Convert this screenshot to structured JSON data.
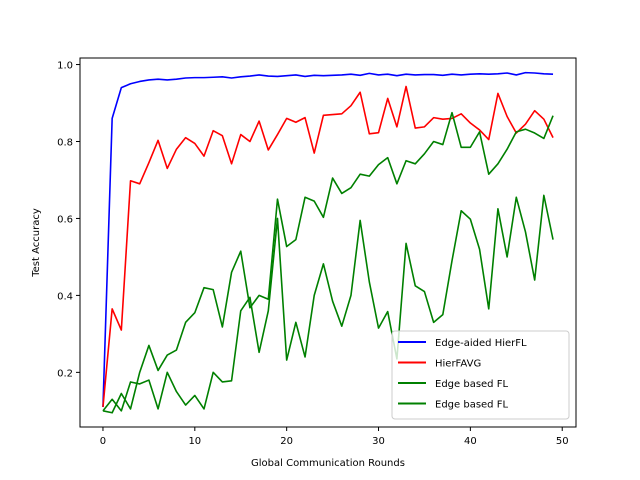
{
  "chart_data": {
    "type": "line",
    "title": "",
    "xlabel": "Global Communication Rounds",
    "ylabel": "Test Accuracy",
    "xlim": [
      -2.5,
      51.5
    ],
    "ylim": [
      0.058,
      1.017
    ],
    "xticks": [
      0,
      10,
      20,
      30,
      40,
      50
    ],
    "yticks": [
      0.2,
      0.4,
      0.6,
      0.8,
      1.0
    ],
    "ytick_labels": [
      "0.2",
      "0.4",
      "0.6",
      "0.8",
      "1.0"
    ],
    "grid": false,
    "legend_position": "lower-right",
    "x": [
      0,
      1,
      2,
      3,
      4,
      5,
      6,
      7,
      8,
      9,
      10,
      11,
      12,
      13,
      14,
      15,
      16,
      17,
      18,
      19,
      20,
      21,
      22,
      23,
      24,
      25,
      26,
      27,
      28,
      29,
      30,
      31,
      32,
      33,
      34,
      35,
      36,
      37,
      38,
      39,
      40,
      41,
      42,
      43,
      44,
      45,
      46,
      47,
      48,
      49
    ],
    "series": [
      {
        "name": "Edge-aided HierFL",
        "color": "#0000ff",
        "values": [
          0.11,
          0.86,
          0.94,
          0.95,
          0.956,
          0.96,
          0.962,
          0.96,
          0.962,
          0.965,
          0.966,
          0.966,
          0.967,
          0.968,
          0.965,
          0.968,
          0.97,
          0.973,
          0.97,
          0.969,
          0.971,
          0.973,
          0.969,
          0.972,
          0.971,
          0.972,
          0.973,
          0.975,
          0.972,
          0.977,
          0.973,
          0.975,
          0.971,
          0.975,
          0.973,
          0.974,
          0.974,
          0.972,
          0.975,
          0.973,
          0.975,
          0.976,
          0.975,
          0.976,
          0.978,
          0.973,
          0.979,
          0.978,
          0.976,
          0.975
        ]
      },
      {
        "name": "HierFAVG",
        "color": "#ff0000",
        "values": [
          0.11,
          0.365,
          0.31,
          0.698,
          0.69,
          0.745,
          0.803,
          0.73,
          0.78,
          0.81,
          0.795,
          0.762,
          0.828,
          0.815,
          0.742,
          0.818,
          0.8,
          0.853,
          0.778,
          0.818,
          0.86,
          0.85,
          0.862,
          0.77,
          0.868,
          0.87,
          0.872,
          0.893,
          0.928,
          0.82,
          0.823,
          0.912,
          0.838,
          0.943,
          0.835,
          0.838,
          0.862,
          0.858,
          0.86,
          0.872,
          0.848,
          0.83,
          0.805,
          0.925,
          0.865,
          0.822,
          0.845,
          0.88,
          0.858,
          0.81
        ]
      },
      {
        "name": "Edge based FL",
        "color": "#008000",
        "values": [
          0.1,
          0.095,
          0.145,
          0.105,
          0.2,
          0.27,
          0.205,
          0.245,
          0.258,
          0.33,
          0.355,
          0.42,
          0.415,
          0.318,
          0.46,
          0.515,
          0.368,
          0.4,
          0.39,
          0.65,
          0.527,
          0.545,
          0.655,
          0.645,
          0.603,
          0.705,
          0.665,
          0.68,
          0.715,
          0.71,
          0.74,
          0.758,
          0.69,
          0.75,
          0.742,
          0.768,
          0.8,
          0.792,
          0.875,
          0.785,
          0.785,
          0.825,
          0.715,
          0.742,
          0.78,
          0.825,
          0.832,
          0.822,
          0.808,
          0.867
        ]
      },
      {
        "name": "Edge based FL",
        "color": "#008000",
        "values": [
          0.1,
          0.13,
          0.1,
          0.175,
          0.17,
          0.18,
          0.105,
          0.2,
          0.15,
          0.115,
          0.14,
          0.105,
          0.2,
          0.175,
          0.178,
          0.36,
          0.395,
          0.252,
          0.36,
          0.6,
          0.232,
          0.33,
          0.24,
          0.4,
          0.482,
          0.385,
          0.32,
          0.4,
          0.595,
          0.435,
          0.315,
          0.358,
          0.235,
          0.535,
          0.425,
          0.41,
          0.33,
          0.35,
          0.49,
          0.62,
          0.598,
          0.52,
          0.365,
          0.625,
          0.5,
          0.655,
          0.565,
          0.44,
          0.66,
          0.545
        ]
      }
    ]
  }
}
